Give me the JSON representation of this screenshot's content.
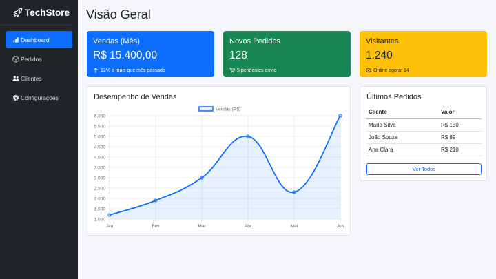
{
  "brand": {
    "name": "TechStore",
    "icon": "rocket-icon"
  },
  "nav": {
    "items": [
      {
        "label": "Dashboard",
        "icon": "bar-chart-icon",
        "active": true
      },
      {
        "label": "Pedidos",
        "icon": "box-icon",
        "active": false
      },
      {
        "label": "Clientes",
        "icon": "users-icon",
        "active": false
      },
      {
        "label": "Configurações",
        "icon": "gear-icon",
        "active": false
      }
    ]
  },
  "page": {
    "title": "Visão Geral"
  },
  "stats": {
    "sales": {
      "label": "Vendas (Mês)",
      "value": "R$ 15.400,00",
      "sub": "12% a mais que mês passado",
      "icon": "arrow-up-icon",
      "color": "#0d6efd"
    },
    "orders": {
      "label": "Novos Pedidos",
      "value": "128",
      "sub": "5 pendentes envio",
      "icon": "cart-icon",
      "color": "#198754"
    },
    "visitors": {
      "label": "Visitantes",
      "value": "1.240",
      "sub": "Online agora: 14",
      "icon": "eye-icon",
      "color": "#ffc107"
    }
  },
  "chart_panel": {
    "title": "Desempenho de Vendas"
  },
  "chart_data": {
    "type": "line",
    "title": "",
    "xlabel": "",
    "ylabel": "",
    "categories": [
      "Jan",
      "Fev",
      "Mar",
      "Abr",
      "Mai",
      "Jun"
    ],
    "series": [
      {
        "name": "Vendas (R$)",
        "values": [
          1200,
          1900,
          3000,
          5000,
          2300,
          6000
        ],
        "color": "#0d6efd"
      }
    ],
    "ylim": [
      1000,
      6000
    ],
    "yticks": [
      "1.000",
      "1.500",
      "2.000",
      "2.500",
      "3.000",
      "3.500",
      "4.000",
      "4.500",
      "5.000",
      "5.500",
      "6.000"
    ],
    "ytick_values": [
      1000,
      1500,
      2000,
      2500,
      3000,
      3500,
      4000,
      4500,
      5000,
      5500,
      6000
    ],
    "grid": true,
    "legend": "top",
    "fill": true
  },
  "orders_panel": {
    "title": "Últimos Pedidos",
    "columns": [
      "Cliente",
      "Valor"
    ],
    "rows": [
      [
        "Maria Silva",
        "R$ 150"
      ],
      [
        "João Souza",
        "R$ 89"
      ],
      [
        "Ana Clara",
        "R$ 210"
      ]
    ],
    "button_label": "Ver Todos"
  }
}
